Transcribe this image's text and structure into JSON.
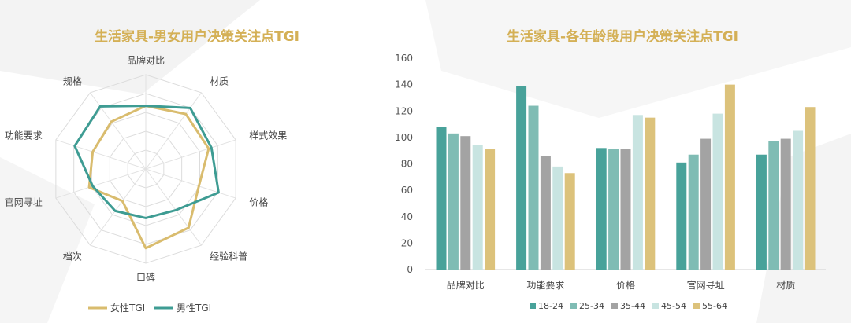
{
  "colors": {
    "female": "#d9bc6e",
    "male": "#3e9c93",
    "title": "#d4b056",
    "series": [
      "#48a29a",
      "#7fbcb4",
      "#a3a3a3",
      "#c8e4e1",
      "#dcc27b"
    ]
  },
  "chart_data": [
    {
      "type": "radar",
      "title": "生活家具-男女用户决策关注点TGI",
      "axes": [
        "品牌对比",
        "材质",
        "样式效果",
        "价格",
        "经验科普",
        "口碑",
        "档次",
        "官网寻址",
        "功能要求",
        "规格"
      ],
      "rmax": 1.0,
      "legend_position": "bottom",
      "series": [
        {
          "name": "女性TGI",
          "values": [
            0.67,
            0.72,
            0.7,
            0.59,
            0.77,
            0.84,
            0.42,
            0.63,
            0.59,
            0.62
          ]
        },
        {
          "name": "男性TGI",
          "values": [
            0.67,
            0.8,
            0.73,
            0.81,
            0.54,
            0.52,
            0.55,
            0.59,
            0.79,
            0.82
          ]
        }
      ]
    },
    {
      "type": "bar",
      "title": "生活家具-各年龄段用户决策关注点TGI",
      "categories": [
        "品牌对比",
        "功能要求",
        "价格",
        "官网寻址",
        "材质"
      ],
      "ylim": [
        0,
        160
      ],
      "yticks": [
        0,
        20,
        40,
        60,
        80,
        100,
        120,
        140,
        160
      ],
      "legend_position": "bottom",
      "series": [
        {
          "name": "18-24",
          "values": [
            108,
            139,
            92,
            81,
            87
          ]
        },
        {
          "name": "25-34",
          "values": [
            103,
            124,
            91,
            87,
            97
          ]
        },
        {
          "name": "35-44",
          "values": [
            101,
            86,
            91,
            99,
            99
          ]
        },
        {
          "name": "45-54",
          "values": [
            94,
            78,
            117,
            118,
            105
          ]
        },
        {
          "name": "55-64",
          "values": [
            91,
            73,
            115,
            140,
            123
          ]
        }
      ]
    }
  ]
}
